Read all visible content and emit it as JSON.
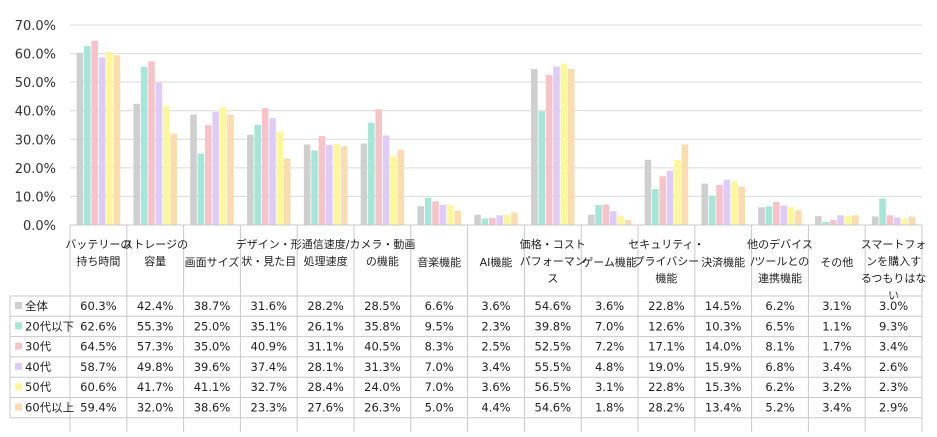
{
  "chart_data": {
    "type": "bar",
    "title": "",
    "xlabel": "",
    "ylabel": "",
    "ylim": [
      0,
      70
    ],
    "yticks": [
      "0.0%",
      "10.0%",
      "20.0%",
      "30.0%",
      "40.0%",
      "50.0%",
      "60.0%",
      "70.0%"
    ],
    "grid": true,
    "legend": "data-table-left",
    "categories": [
      "バッテリーの持ち時間",
      "ストレージの容量",
      "画面サイズ",
      "デザイン・形状・見た目",
      "通信速度/処理速度",
      "カメラ・動画の機能",
      "音楽機能",
      "AI機能",
      "価格・コストパフォーマンス",
      "ゲーム機能",
      "セキュリティ・プライバシー機能",
      "決済機能",
      "他のデバイス/ツールとの連携機能",
      "その他",
      "スマートフォンを購入するつもりはない"
    ],
    "category_lines": [
      [
        "バッテリーの",
        "持ち時間"
      ],
      [
        "ストレージの",
        "容量"
      ],
      [
        "画面サイズ"
      ],
      [
        "デザイン・形",
        "状・見た目"
      ],
      [
        "通信速度/",
        "処理速度"
      ],
      [
        "カメラ・動画",
        "の機能"
      ],
      [
        "音楽機能"
      ],
      [
        "AI機能"
      ],
      [
        "価格・コスト",
        "パフォーマン",
        "ス"
      ],
      [
        "ゲーム機能"
      ],
      [
        "セキュリティ・",
        "プライバシー",
        "機能"
      ],
      [
        "決済機能"
      ],
      [
        "他のデバイス",
        "/ツールとの",
        "連携機能"
      ],
      [
        "その他"
      ],
      [
        "スマートフォ",
        "ンを購入す",
        "るつもりはな",
        "い"
      ]
    ],
    "series": [
      {
        "name": "全体",
        "color": "#cfcfcf",
        "values": [
          60.3,
          42.4,
          38.7,
          31.6,
          28.2,
          28.5,
          6.6,
          3.6,
          54.6,
          3.6,
          22.8,
          14.5,
          6.2,
          3.1,
          3.0
        ],
        "labels": [
          "60.3%",
          "42.4%",
          "38.7%",
          "31.6%",
          "28.2%",
          "28.5%",
          "6.6%",
          "3.6%",
          "54.6%",
          "3.6%",
          "22.8%",
          "14.5%",
          "6.2%",
          "3.1%",
          "3.0%"
        ]
      },
      {
        "name": "20代以下",
        "color": "#a5e6d8",
        "values": [
          62.6,
          55.3,
          25.0,
          35.1,
          26.1,
          35.8,
          9.5,
          2.3,
          39.8,
          7.0,
          12.6,
          10.3,
          6.5,
          1.1,
          9.3
        ],
        "labels": [
          "62.6%",
          "55.3%",
          "25.0%",
          "35.1%",
          "26.1%",
          "35.8%",
          "9.5%",
          "2.3%",
          "39.8%",
          "7.0%",
          "12.6%",
          "10.3%",
          "6.5%",
          "1.1%",
          "9.3%"
        ]
      },
      {
        "name": "30代",
        "color": "#f8c2c9",
        "values": [
          64.5,
          57.3,
          35.0,
          40.9,
          31.1,
          40.5,
          8.3,
          2.5,
          52.5,
          7.2,
          17.1,
          14.0,
          8.1,
          1.7,
          3.4
        ],
        "labels": [
          "64.5%",
          "57.3%",
          "35.0%",
          "40.9%",
          "31.1%",
          "40.5%",
          "8.3%",
          "2.5%",
          "52.5%",
          "7.2%",
          "17.1%",
          "14.0%",
          "8.1%",
          "1.7%",
          "3.4%"
        ]
      },
      {
        "name": "40代",
        "color": "#decbf7",
        "values": [
          58.7,
          49.8,
          39.6,
          37.4,
          28.1,
          31.3,
          7.0,
          3.4,
          55.5,
          4.8,
          19.0,
          15.9,
          6.8,
          3.4,
          2.6
        ],
        "labels": [
          "58.7%",
          "49.8%",
          "39.6%",
          "37.4%",
          "28.1%",
          "31.3%",
          "7.0%",
          "3.4%",
          "55.5%",
          "4.8%",
          "19.0%",
          "15.9%",
          "6.8%",
          "3.4%",
          "2.6%"
        ]
      },
      {
        "name": "50代",
        "color": "#fbf79a",
        "values": [
          60.6,
          41.7,
          41.1,
          32.7,
          28.4,
          24.0,
          7.0,
          3.6,
          56.5,
          3.1,
          22.8,
          15.3,
          6.2,
          3.2,
          2.3
        ],
        "labels": [
          "60.6%",
          "41.7%",
          "41.1%",
          "32.7%",
          "28.4%",
          "24.0%",
          "7.0%",
          "3.6%",
          "56.5%",
          "3.1%",
          "22.8%",
          "15.3%",
          "6.2%",
          "3.2%",
          "2.3%"
        ]
      },
      {
        "name": "60代以上",
        "color": "#fcdcae",
        "values": [
          59.4,
          32.0,
          38.6,
          23.3,
          27.6,
          26.3,
          5.0,
          4.4,
          54.6,
          1.8,
          28.2,
          13.4,
          5.2,
          3.4,
          2.9
        ],
        "labels": [
          "59.4%",
          "32.0%",
          "38.6%",
          "23.3%",
          "27.6%",
          "26.3%",
          "5.0%",
          "4.4%",
          "54.6%",
          "1.8%",
          "28.2%",
          "13.4%",
          "5.2%",
          "3.4%",
          "2.9%"
        ]
      }
    ]
  }
}
